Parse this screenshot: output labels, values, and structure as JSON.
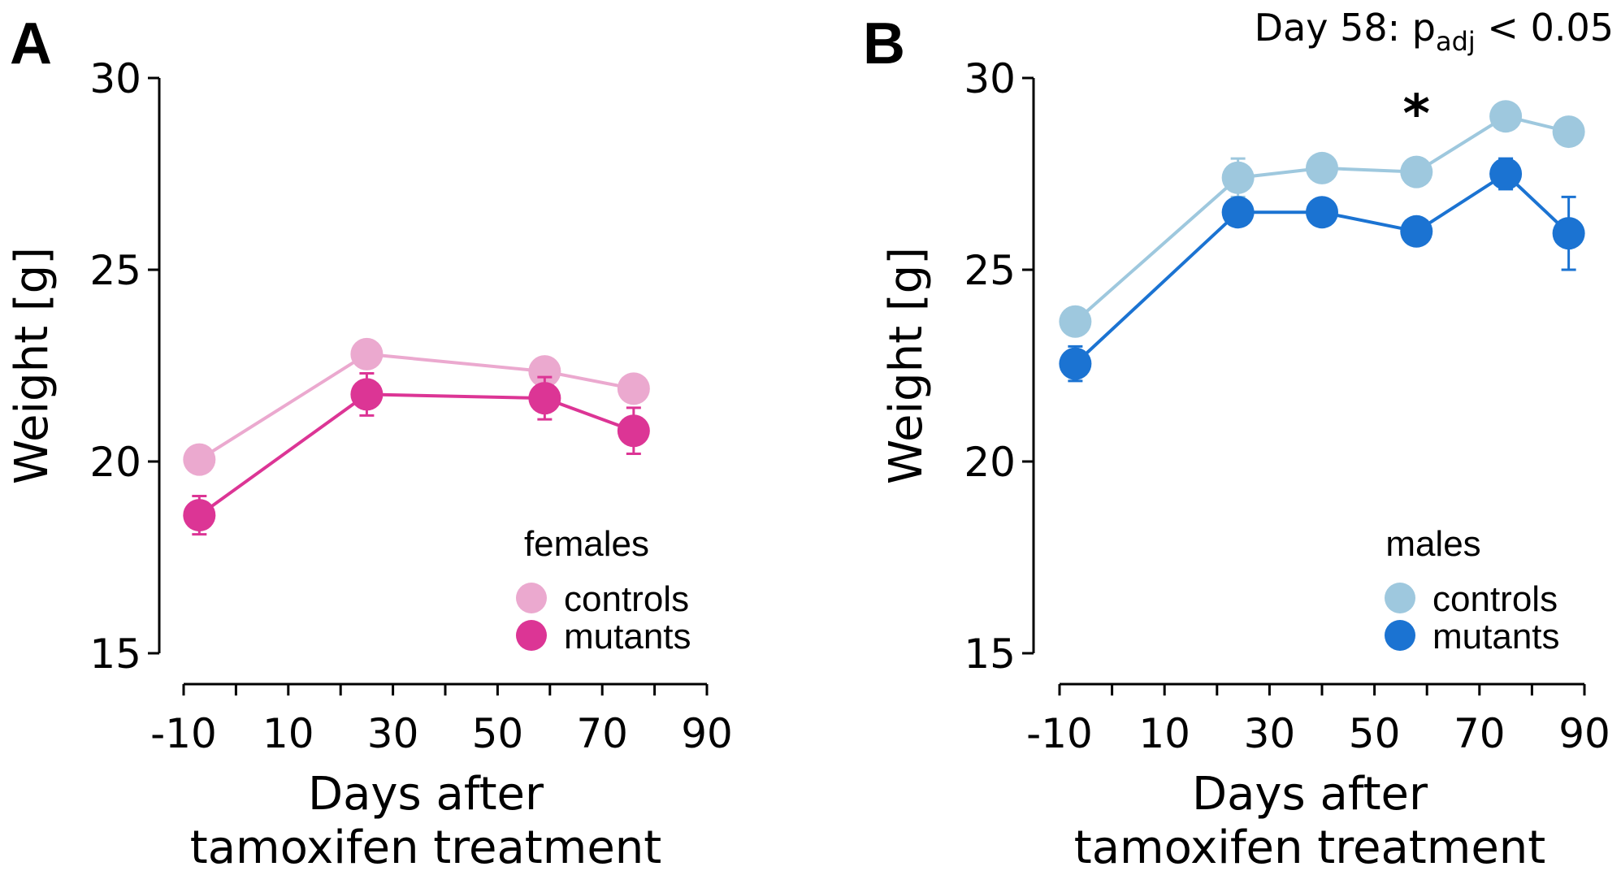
{
  "chart_data": [
    {
      "panel": "A",
      "type": "line",
      "xlabel": [
        "Days after",
        "tamoxifen treatment"
      ],
      "ylabel": "Weight [g]",
      "xlim": [
        -10,
        90
      ],
      "ylim": [
        15,
        30
      ],
      "xticks": [
        -10,
        10,
        30,
        50,
        70,
        90
      ],
      "yticks": [
        15,
        20,
        25,
        30
      ],
      "legend_title": "females",
      "legend_position": "bottom-right",
      "series": [
        {
          "name": "controls",
          "color": "#eba9cf",
          "x": [
            -7,
            25,
            59,
            76
          ],
          "y": [
            20.05,
            22.8,
            22.35,
            21.9
          ],
          "err": [
            0.15,
            0.2,
            0.15,
            0.2
          ]
        },
        {
          "name": "mutants",
          "color": "#dc3595",
          "x": [
            -7,
            25,
            59,
            76
          ],
          "y": [
            18.6,
            21.75,
            21.65,
            20.8
          ],
          "err": [
            0.5,
            0.55,
            0.55,
            0.6
          ]
        }
      ]
    },
    {
      "panel": "B",
      "type": "line",
      "xlabel": [
        "Days after",
        "tamoxifen treatment"
      ],
      "ylabel": "Weight [g]",
      "xlim": [
        -10,
        90
      ],
      "ylim": [
        15,
        30
      ],
      "xticks": [
        -10,
        10,
        30,
        50,
        70,
        90
      ],
      "yticks": [
        15,
        20,
        25,
        30
      ],
      "legend_title": "males",
      "legend_position": "bottom-right",
      "annotation": {
        "prefix": "Day 58: p",
        "subscript": "adj",
        "suffix": " < 0.05"
      },
      "significance": {
        "symbol": "*",
        "x": 58
      },
      "series": [
        {
          "name": "controls",
          "color": "#9ec8de",
          "x": [
            -7,
            24,
            40,
            58,
            75,
            87
          ],
          "y": [
            23.65,
            27.4,
            27.65,
            27.55,
            29.0,
            28.6
          ],
          "err": [
            0.2,
            0.5,
            0.25,
            0.15,
            0.2,
            0.2
          ]
        },
        {
          "name": "mutants",
          "color": "#1b73d2",
          "x": [
            -7,
            24,
            40,
            58,
            75,
            87
          ],
          "y": [
            22.55,
            26.5,
            26.5,
            26.0,
            27.5,
            25.95
          ],
          "err": [
            0.45,
            0.2,
            0.2,
            0.2,
            0.4,
            0.95
          ]
        }
      ]
    }
  ]
}
